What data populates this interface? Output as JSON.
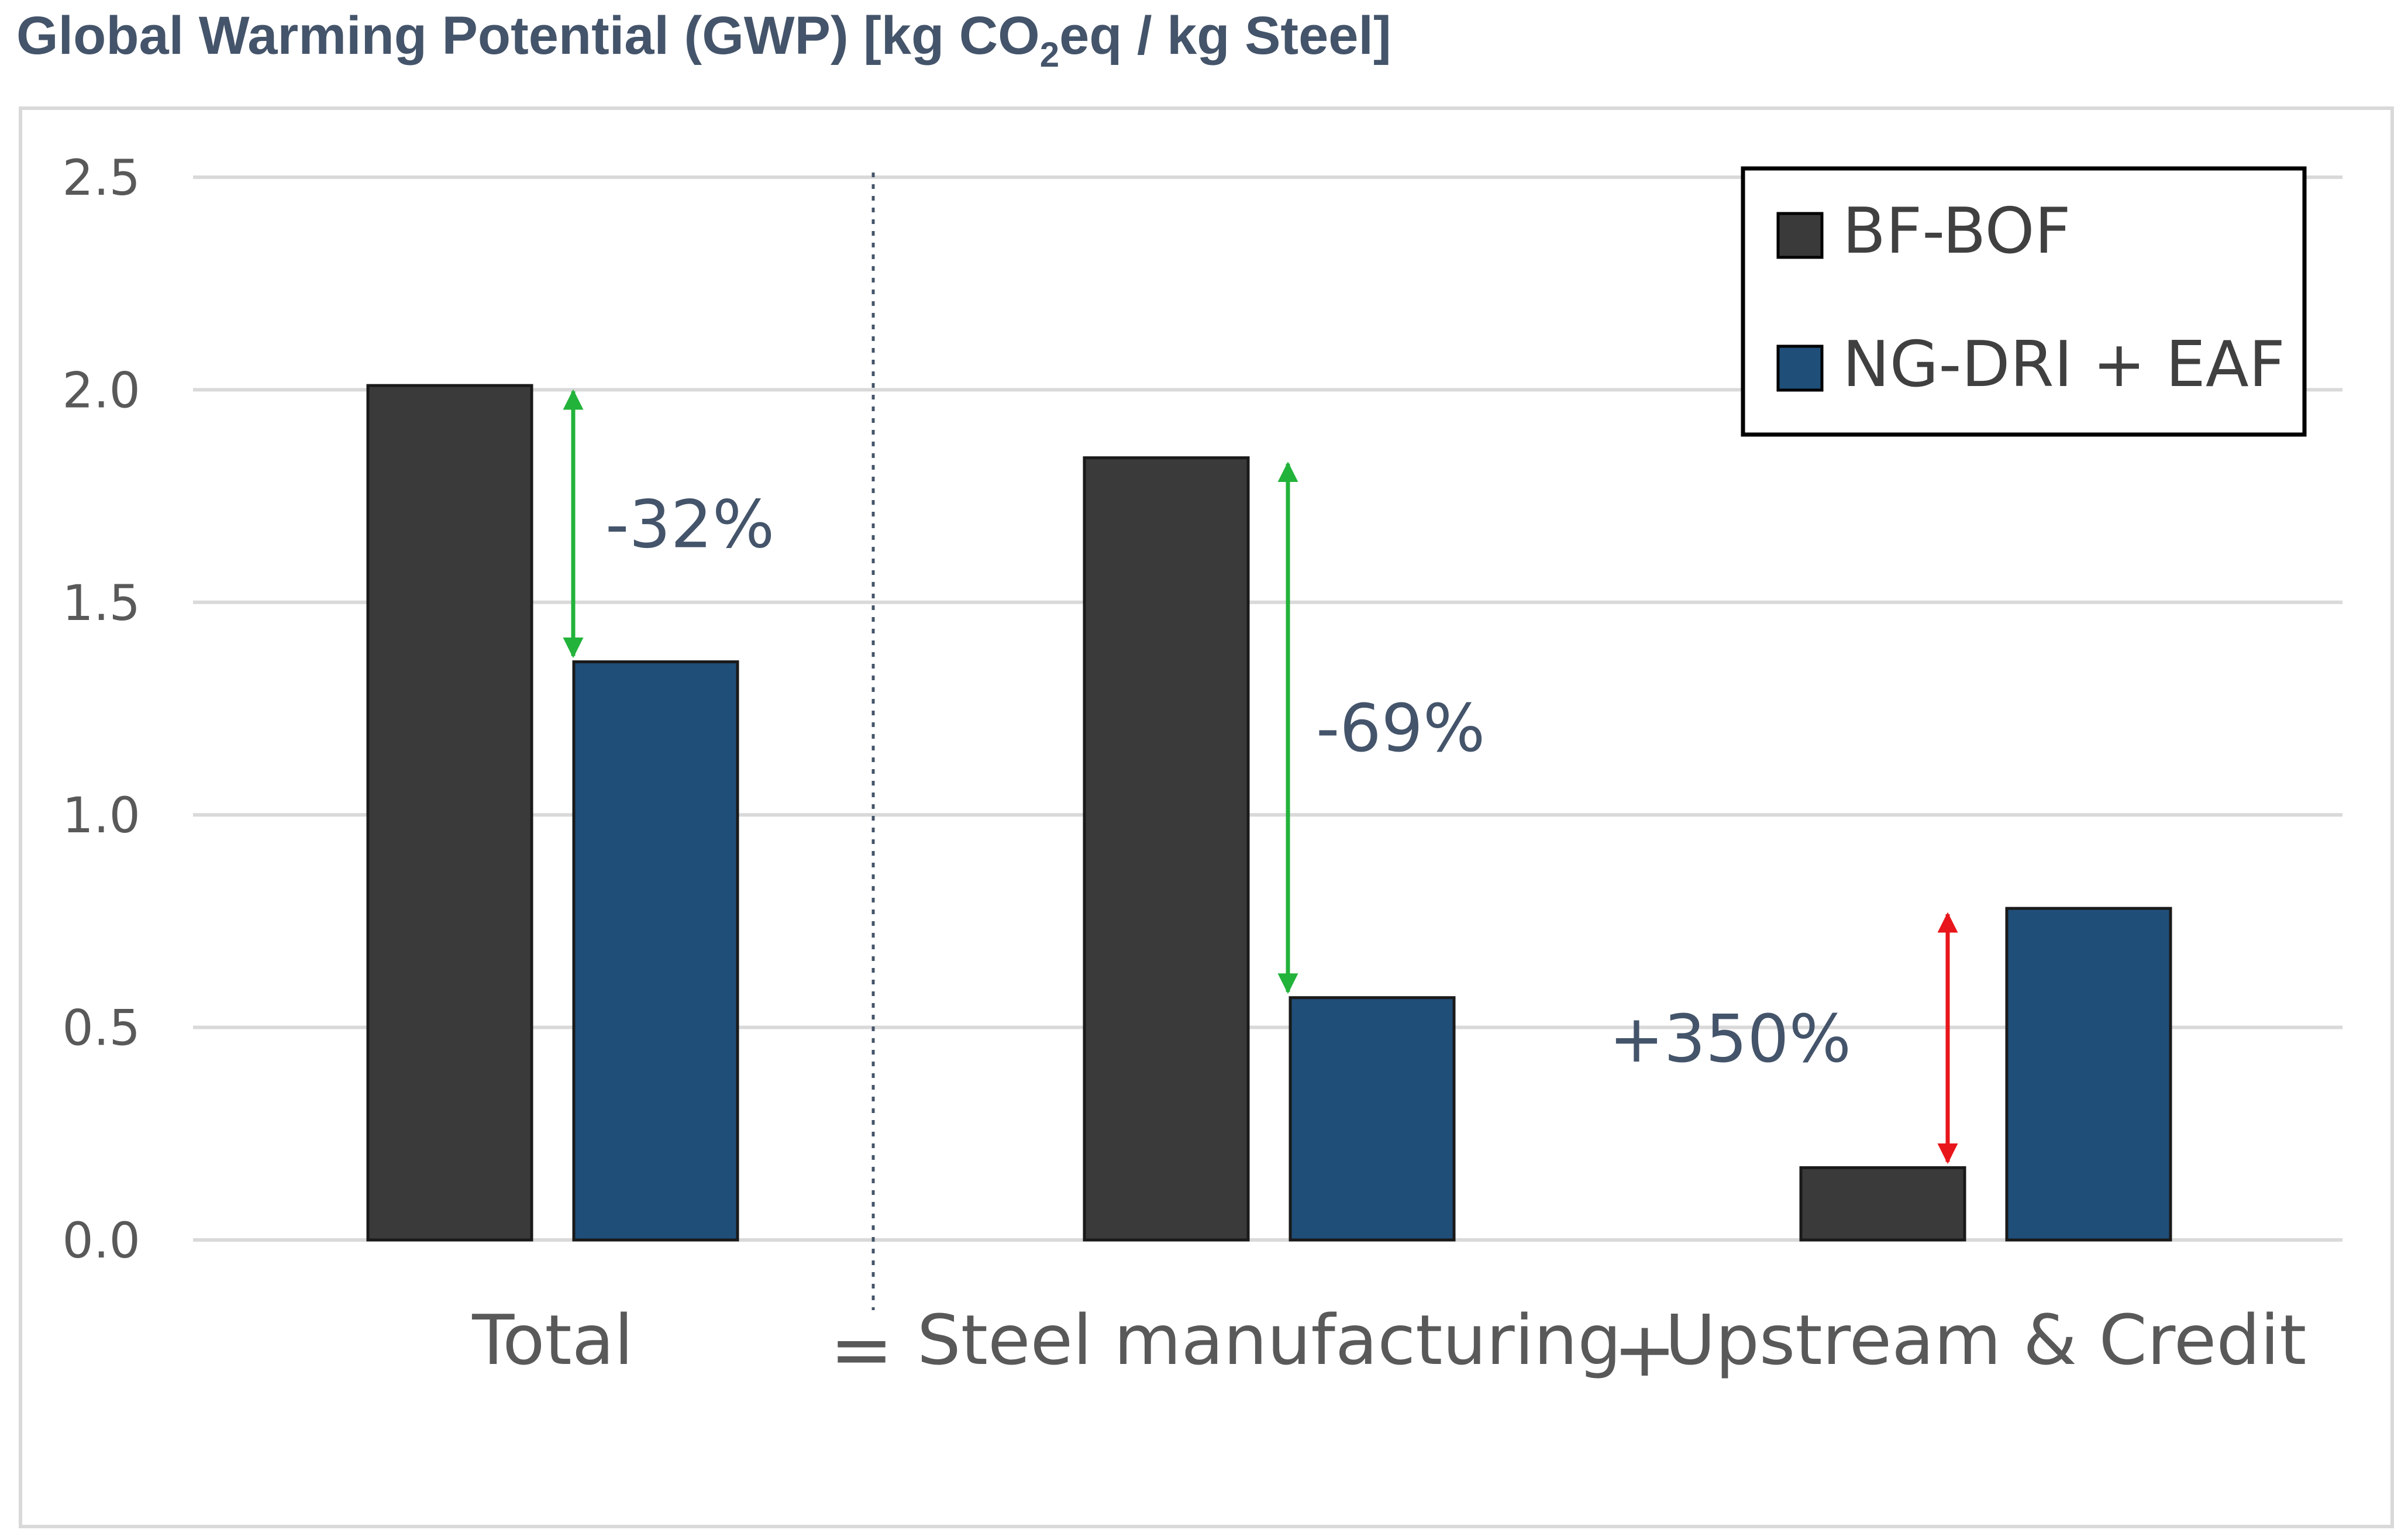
{
  "chart_data": {
    "type": "bar",
    "title": {
      "prefix": "Global Warming Potential (GWP) [kg CO",
      "subscript": "2",
      "suffix": "eq / kg Steel]"
    },
    "categories": [
      "Total",
      "Steel manufacturing",
      "Upstream & Credit"
    ],
    "operators": [
      "=",
      "+"
    ],
    "series": [
      {
        "name": "BF-BOF",
        "color": "#3a3a3a",
        "values": [
          2.01,
          1.84,
          0.17
        ]
      },
      {
        "name": "NG-DRI + EAF",
        "color": "#1f4e79",
        "values": [
          1.36,
          0.57,
          0.78
        ]
      }
    ],
    "ylim": [
      0,
      2.5
    ],
    "yticks": [
      "0.0",
      "0.5",
      "1.0",
      "1.5",
      "2.0",
      "2.5"
    ],
    "grid": true,
    "legend_position": "top-right",
    "annotations": [
      {
        "label": "-32%",
        "category": 0,
        "from": 2.01,
        "to": 1.36,
        "color": "#22b33a"
      },
      {
        "label": "-69%",
        "category": 1,
        "from": 1.84,
        "to": 0.57,
        "color": "#22b33a"
      },
      {
        "label": "+350%",
        "category": 2,
        "from": 0.17,
        "to": 0.78,
        "color": "#e8161b"
      }
    ]
  }
}
